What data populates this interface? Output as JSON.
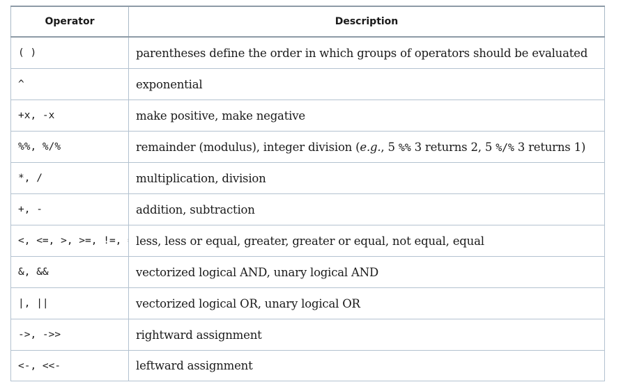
{
  "table": {
    "headers": {
      "operator": "Operator",
      "description": "Description"
    },
    "rows": [
      {
        "operator": "( )",
        "description": "parentheses define the order in which groups of operators should be evaluated"
      },
      {
        "operator": "^",
        "description": "exponential"
      },
      {
        "operator": "+x, -x",
        "description": "make positive, make negative"
      },
      {
        "operator": "%%, %/%",
        "description_parts": {
          "pre": "remainder (modulus), integer division (",
          "eg": "e.g.",
          "comma1": ", 5 ",
          "op1": "%%",
          "mid1": " 3 returns 2, 5 ",
          "op2": "%/%",
          "mid2": " 3 returns 1)"
        }
      },
      {
        "operator": "*, /",
        "description": "multiplication, division"
      },
      {
        "operator": "+, -",
        "description": "addition, subtraction"
      },
      {
        "operator": "<, <=, >, >=, !=, ==",
        "description": "less, less or equal, greater, greater or equal, not equal, equal"
      },
      {
        "operator": "&, &&",
        "description": "vectorized logical AND, unary logical AND"
      },
      {
        "operator": "|, ||",
        "description": "vectorized logical OR, unary logical OR"
      },
      {
        "operator": "->, ->>",
        "description": "rightward assignment"
      },
      {
        "operator": "<-, <<-",
        "description": "leftward assignment"
      }
    ]
  }
}
